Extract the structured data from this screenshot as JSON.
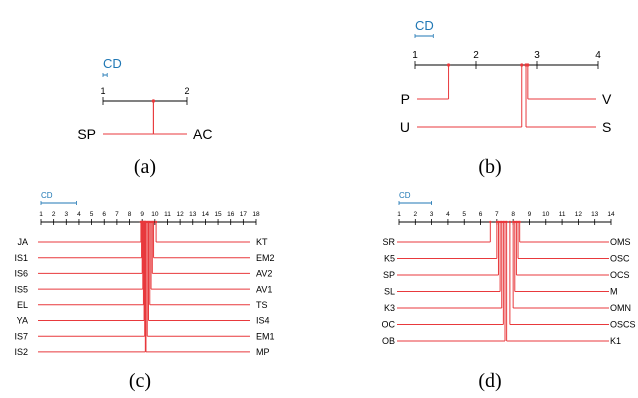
{
  "colors": {
    "line": "#e8393c",
    "cd": "#1f77b4",
    "axis": "#000000"
  },
  "chart_data": [
    {
      "type": "critical-difference",
      "caption": "(a)",
      "cd_text": "CD",
      "cd": 0.05,
      "range": [
        1,
        2
      ],
      "ticks": [
        "1",
        "2"
      ],
      "left": [
        {
          "name": "SP",
          "rank": 1.6
        }
      ],
      "right": [
        {
          "name": "AC",
          "rank": 1.6
        }
      ]
    },
    {
      "type": "critical-difference",
      "caption": "(b)",
      "cd_text": "CD",
      "cd": 0.3,
      "range": [
        1,
        4
      ],
      "ticks": [
        "1",
        "2",
        "3",
        "4"
      ],
      "left": [
        {
          "name": "P",
          "rank": 1.55
        },
        {
          "name": "U",
          "rank": 2.75
        }
      ],
      "right": [
        {
          "name": "V",
          "rank": 2.85
        },
        {
          "name": "S",
          "rank": 2.82
        }
      ]
    },
    {
      "type": "critical-difference",
      "caption": "(c)",
      "cd_text": "CD",
      "cd": 2.8,
      "range": [
        1,
        18
      ],
      "ticks": [
        "1",
        "2",
        "3",
        "4",
        "5",
        "6",
        "7",
        "8",
        "9",
        "10",
        "11",
        "12",
        "13",
        "14",
        "15",
        "16",
        "17",
        "18"
      ],
      "left": [
        {
          "name": "JA",
          "rank": 8.9
        },
        {
          "name": "IS1",
          "rank": 8.95
        },
        {
          "name": "IS6",
          "rank": 9.0
        },
        {
          "name": "IS5",
          "rank": 9.05
        },
        {
          "name": "EL",
          "rank": 9.1
        },
        {
          "name": "YA",
          "rank": 9.15
        },
        {
          "name": "IS7",
          "rank": 9.2
        },
        {
          "name": "IS2",
          "rank": 9.25
        }
      ],
      "right": [
        {
          "name": "KT",
          "rank": 10.1
        },
        {
          "name": "EM2",
          "rank": 9.9
        },
        {
          "name": "AV2",
          "rank": 9.8
        },
        {
          "name": "AV1",
          "rank": 9.7
        },
        {
          "name": "TS",
          "rank": 9.6
        },
        {
          "name": "IS4",
          "rank": 9.5
        },
        {
          "name": "EM1",
          "rank": 9.4
        },
        {
          "name": "MP",
          "rank": 9.3
        }
      ]
    },
    {
      "type": "critical-difference",
      "caption": "(d)",
      "cd_text": "CD",
      "cd": 2.0,
      "range": [
        1,
        14
      ],
      "ticks": [
        "1",
        "2",
        "3",
        "4",
        "5",
        "6",
        "7",
        "8",
        "9",
        "10",
        "11",
        "12",
        "13",
        "14"
      ],
      "left": [
        {
          "name": "SR",
          "rank": 6.6
        },
        {
          "name": "K5",
          "rank": 7.0
        },
        {
          "name": "SP",
          "rank": 7.1
        },
        {
          "name": "SL",
          "rank": 7.2
        },
        {
          "name": "K3",
          "rank": 7.3
        },
        {
          "name": "OC",
          "rank": 7.4
        },
        {
          "name": "OB",
          "rank": 7.5
        }
      ],
      "right": [
        {
          "name": "OMS",
          "rank": 8.4
        },
        {
          "name": "OSC",
          "rank": 8.3
        },
        {
          "name": "OCS",
          "rank": 8.2
        },
        {
          "name": "M",
          "rank": 8.1
        },
        {
          "name": "OMN",
          "rank": 8.0
        },
        {
          "name": "OSCS",
          "rank": 7.8
        },
        {
          "name": "K1",
          "rank": 7.6
        }
      ]
    }
  ]
}
